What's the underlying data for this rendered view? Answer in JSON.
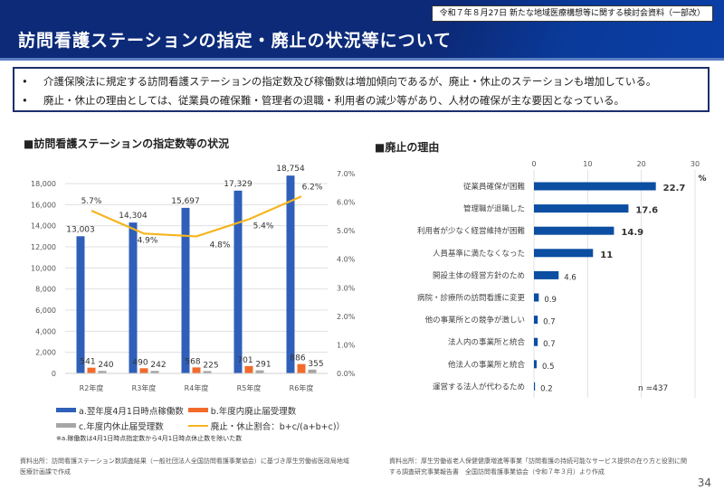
{
  "header": {
    "source_tag": "令和７年８月27日 新たな地域医療構想等に関する検討会資料（一部改）",
    "title": "訪問看護ステーションの指定・廃止の状況等について"
  },
  "summary": {
    "bullet_glyph": "•",
    "items": [
      "介護保険法に規定する訪問看護ステーションの指定数及び稼働数は増加傾向であるが、廃止・休止のステーションも増加している。",
      "廃止・休止の理由としては、従業員の確保難・管理者の退職・利用者の減少等があり、人材の確保が主な要因となっている。"
    ]
  },
  "colors": {
    "header_bg": "#0c2a78",
    "series_a": "#2f5fb8",
    "series_b": "#f26b2c",
    "series_c": "#a6a6a6",
    "ratio_line": "#f5b51f",
    "reason_bar": "#0b4ea2",
    "grid": "#e0e0e0"
  },
  "left_section": {
    "title": "■訪問看護ステーションの指定数等の状況",
    "legend": [
      {
        "key": "a",
        "label": "a.翌年度4月1日時点稼働数"
      },
      {
        "key": "b",
        "label": "b.年度内廃止届受理数"
      },
      {
        "key": "c",
        "label": "c.年度内休止届受理数"
      },
      {
        "key": "ratio",
        "label": "廃止・休止割合：b+c/(a+b+c)）"
      }
    ],
    "note": "※a.稼働数は4月1日時点指定数から4月1日時点休止数を除いた数",
    "footnote": [
      "資料出所：訪問看護ステーション数調査結果（一般社団法人全国訪問看護事業協会）に基づき厚生労働省医政局地域",
      "医療計画課で作成"
    ]
  },
  "right_section": {
    "title": "■廃止の理由",
    "n_label": "n =437",
    "unit_label": "%",
    "footnote": [
      "資料出所：厚生労働省老人保健健康増進等事業「訪問看護の持続可能なサービス提供の在り方と役割に関",
      "する調査研究事業報告書　全国訪問看護事業協会（令和７年３月）より作成"
    ]
  },
  "page_number": "34",
  "chart_data": [
    {
      "type": "bar",
      "title": "訪問看護ステーションの指定数等の状況",
      "categories": [
        "R2年度",
        "R3年度",
        "R4年度",
        "R5年度",
        "R6年度"
      ],
      "series": [
        {
          "name": "a.翌年度4月1日時点稼働数",
          "axis": "left",
          "type": "bar",
          "values": [
            13003,
            14304,
            15697,
            17329,
            18754
          ],
          "labels": [
            "13,003",
            "14,304",
            "15,697",
            "17,329",
            "18,754"
          ]
        },
        {
          "name": "b.年度内廃止届受理数",
          "axis": "left",
          "type": "bar",
          "values": [
            541,
            490,
            568,
            701,
            886
          ],
          "labels": [
            "541",
            "490",
            "568",
            "701",
            "886"
          ]
        },
        {
          "name": "c.年度内休止届受理数",
          "axis": "left",
          "type": "bar",
          "values": [
            240,
            242,
            225,
            291,
            355
          ],
          "labels": [
            "240",
            "242",
            "225",
            "291",
            "355"
          ]
        },
        {
          "name": "廃止・休止割合：b+c/(a+b+c)）",
          "axis": "right",
          "type": "line",
          "values": [
            5.7,
            4.9,
            4.8,
            5.4,
            6.2
          ],
          "labels": [
            "5.7%",
            "4.9%",
            "4.8%",
            "5.4%",
            "6.2%"
          ]
        }
      ],
      "ylim": [
        0,
        18000
      ],
      "yticks": [
        0,
        2000,
        4000,
        6000,
        8000,
        10000,
        12000,
        14000,
        16000,
        18000
      ],
      "ytick_labels": [
        "0",
        "2,000",
        "4,000",
        "6,000",
        "8,000",
        "10,000",
        "12,000",
        "14,000",
        "16,000",
        "18,000"
      ],
      "y2lim": [
        0,
        7
      ],
      "y2ticks": [
        0,
        1,
        2,
        3,
        4,
        5,
        6,
        7
      ],
      "y2tick_labels": [
        "0.0%",
        "1.0%",
        "2.0%",
        "3.0%",
        "4.0%",
        "5.0%",
        "6.0%",
        "7.0%"
      ],
      "grid": true,
      "legend_position": "bottom"
    },
    {
      "type": "bar",
      "orientation": "horizontal",
      "title": "廃止の理由",
      "categories": [
        "従業員確保が困難",
        "管理職が退職した",
        "利用者が少なく経営維持が困難",
        "人員基準に満たなくなった",
        "開設主体の経営方針のため",
        "病院・診療所の訪問看護に変更",
        "他の事業所との競争が激しい",
        "法人内の事業所と統合",
        "他法人の事業所と統合",
        "運営する法人が代わるため"
      ],
      "values": [
        22.7,
        17.6,
        14.9,
        11,
        4.6,
        0.9,
        0.7,
        0.7,
        0.5,
        0.2
      ],
      "labels": [
        "22.7",
        "17.6",
        "14.9",
        "11",
        "4.6",
        "0.9",
        "0.7",
        "0.7",
        "0.5",
        "0.2"
      ],
      "bold_labels": [
        true,
        true,
        true,
        true,
        false,
        false,
        false,
        false,
        false,
        false
      ],
      "xlim": [
        0,
        30
      ],
      "xticks": [
        0,
        10,
        20,
        30
      ],
      "xtick_labels": [
        "0",
        "10",
        "20",
        "30"
      ],
      "xlabel": "%",
      "n": 437,
      "grid": true
    }
  ]
}
